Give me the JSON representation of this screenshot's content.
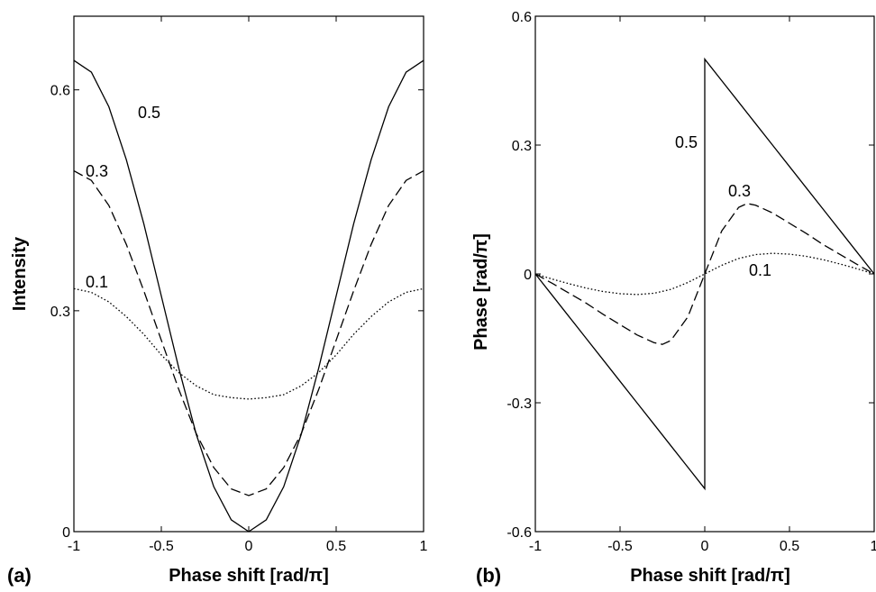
{
  "chart_data": [
    {
      "type": "line",
      "panel_label": "(a)",
      "xlabel": "Phase shift [rad/π]",
      "ylabel": "Intensity",
      "xlim": [
        -1,
        1
      ],
      "ylim": [
        0,
        0.7
      ],
      "xticks": [
        -1,
        -0.5,
        0,
        0.5,
        1
      ],
      "xtick_labels": [
        "-1",
        "-0.5",
        "0",
        "0.5",
        "1"
      ],
      "yticks": [
        0,
        0.3,
        0.6
      ],
      "ytick_labels": [
        "0",
        "0.3",
        "0.6"
      ],
      "grid": false,
      "series": [
        {
          "name": "0.5",
          "line_style": "solid",
          "x": [
            -1,
            -0.9,
            -0.8,
            -0.7,
            -0.6,
            -0.5,
            -0.4,
            -0.3,
            -0.2,
            -0.1,
            0,
            0.1,
            0.2,
            0.3,
            0.4,
            0.5,
            0.6,
            0.7,
            0.8,
            0.9,
            1
          ],
          "y": [
            0.64,
            0.624,
            0.577,
            0.505,
            0.418,
            0.32,
            0.222,
            0.132,
            0.061,
            0.016,
            0,
            0.016,
            0.061,
            0.132,
            0.222,
            0.32,
            0.418,
            0.505,
            0.577,
            0.624,
            0.64
          ]
        },
        {
          "name": "0.3",
          "line_style": "dashed",
          "x": [
            -1,
            -0.9,
            -0.8,
            -0.7,
            -0.6,
            -0.5,
            -0.4,
            -0.3,
            -0.2,
            -0.1,
            0,
            0.1,
            0.2,
            0.3,
            0.4,
            0.5,
            0.6,
            0.7,
            0.8,
            0.9,
            1
          ],
          "y": [
            0.49,
            0.477,
            0.443,
            0.39,
            0.327,
            0.26,
            0.193,
            0.133,
            0.087,
            0.058,
            0.049,
            0.058,
            0.087,
            0.133,
            0.193,
            0.26,
            0.327,
            0.39,
            0.443,
            0.477,
            0.49
          ]
        },
        {
          "name": "0.1",
          "line_style": "dotted",
          "x": [
            -1,
            -0.9,
            -0.8,
            -0.7,
            -0.6,
            -0.5,
            -0.4,
            -0.3,
            -0.2,
            -0.1,
            0,
            0.1,
            0.2,
            0.3,
            0.4,
            0.5,
            0.6,
            0.7,
            0.8,
            0.9,
            1
          ],
          "y": [
            0.33,
            0.325,
            0.312,
            0.292,
            0.268,
            0.24,
            0.216,
            0.198,
            0.186,
            0.182,
            0.18,
            0.182,
            0.186,
            0.198,
            0.216,
            0.24,
            0.268,
            0.292,
            0.312,
            0.325,
            0.33
          ]
        }
      ]
    },
    {
      "type": "line",
      "panel_label": "(b)",
      "xlabel": "Phase shift [rad/π]",
      "ylabel": "Phase [rad/π]",
      "xlim": [
        -1,
        1
      ],
      "ylim": [
        -0.6,
        0.6
      ],
      "xticks": [
        -1,
        -0.5,
        0,
        0.5,
        1
      ],
      "xtick_labels": [
        "-1",
        "-0.5",
        "0",
        "0.5",
        "1"
      ],
      "yticks": [
        -0.6,
        -0.3,
        0,
        0.3,
        0.6
      ],
      "ytick_labels": [
        "-0.6",
        "-0.3",
        "0",
        "0.3",
        "0.6"
      ],
      "grid": false,
      "series": [
        {
          "name": "0.5",
          "line_style": "solid",
          "x": [
            -1,
            -0.9,
            -0.8,
            -0.7,
            -0.6,
            -0.5,
            -0.4,
            -0.3,
            -0.2,
            -0.1,
            0,
            0,
            0.1,
            0.2,
            0.3,
            0.4,
            0.5,
            0.6,
            0.7,
            0.8,
            0.9,
            1
          ],
          "y": [
            0,
            -0.05,
            -0.1,
            -0.15,
            -0.2,
            -0.25,
            -0.3,
            -0.35,
            -0.4,
            -0.45,
            -0.5,
            0.5,
            0.45,
            0.4,
            0.35,
            0.3,
            0.25,
            0.2,
            0.15,
            0.1,
            0.05,
            0
          ]
        },
        {
          "name": "0.3",
          "line_style": "dashed",
          "x": [
            -1,
            -0.9,
            -0.8,
            -0.7,
            -0.6,
            -0.5,
            -0.4,
            -0.3,
            -0.25,
            -0.2,
            -0.1,
            0,
            0.1,
            0.2,
            0.25,
            0.3,
            0.4,
            0.5,
            0.6,
            0.7,
            0.8,
            0.9,
            1
          ],
          "y": [
            0,
            -0.022,
            -0.045,
            -0.068,
            -0.094,
            -0.118,
            -0.142,
            -0.16,
            -0.164,
            -0.155,
            -0.1,
            0,
            0.1,
            0.155,
            0.164,
            0.16,
            0.142,
            0.118,
            0.094,
            0.068,
            0.045,
            0.022,
            0
          ]
        },
        {
          "name": "0.1",
          "line_style": "dotted",
          "x": [
            -1,
            -0.9,
            -0.8,
            -0.7,
            -0.6,
            -0.5,
            -0.4,
            -0.3,
            -0.2,
            -0.1,
            0,
            0.1,
            0.2,
            0.3,
            0.4,
            0.5,
            0.6,
            0.7,
            0.8,
            0.9,
            1
          ],
          "y": [
            0,
            -0.012,
            -0.023,
            -0.033,
            -0.041,
            -0.046,
            -0.048,
            -0.045,
            -0.036,
            -0.02,
            0,
            0.02,
            0.036,
            0.045,
            0.048,
            0.046,
            0.041,
            0.033,
            0.023,
            0.012,
            0
          ]
        }
      ]
    }
  ]
}
